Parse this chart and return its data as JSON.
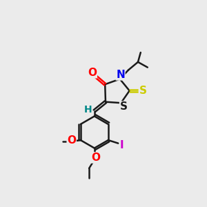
{
  "bg_color": "#ebebeb",
  "bond_color": "#1a1a1a",
  "atom_colors": {
    "O": "#ff0000",
    "N": "#0000ee",
    "S_thioxo": "#cccc00",
    "S_ring": "#1a1a1a",
    "I": "#cc00cc",
    "H": "#008888",
    "C": "#1a1a1a"
  },
  "line_width": 1.8,
  "font_size": 10
}
